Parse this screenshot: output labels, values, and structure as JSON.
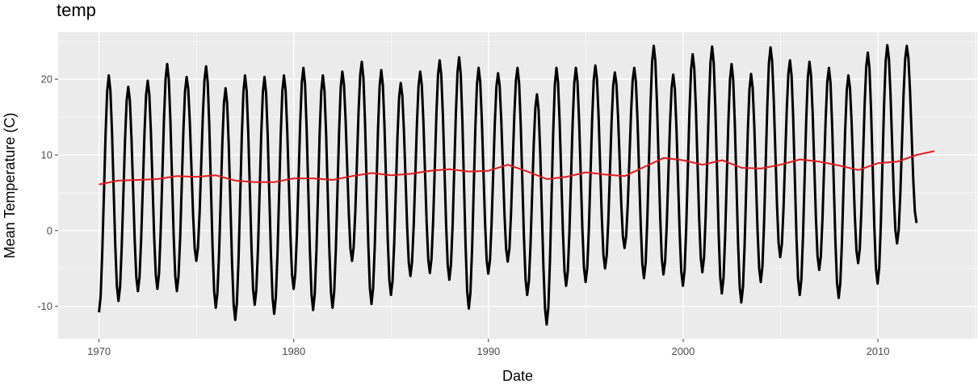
{
  "chart_data": {
    "type": "line",
    "title": "temp",
    "xlabel": "Date",
    "ylabel": "Mean Temperature (C)",
    "xlim": [
      1967.9,
      2015.1
    ],
    "ylim": [
      -14.3,
      26.2
    ],
    "x_ticks": [
      1970,
      1980,
      1990,
      2000,
      2010
    ],
    "x_tick_labels": [
      "1970",
      "1980",
      "1990",
      "2000",
      "2010"
    ],
    "y_ticks": [
      -10,
      0,
      10,
      20
    ],
    "y_tick_labels": [
      "-10",
      "0",
      "10",
      "20"
    ],
    "grid": true,
    "background": "#ebebeb",
    "series": [
      {
        "name": "",
        "color": "#000000",
        "x_start": 1970.0,
        "x_step": 0.0833,
        "summer_peaks": [
          20.5,
          19.0,
          19.8,
          22.0,
          20.3,
          21.7,
          18.8,
          20.5,
          20.3,
          20.5,
          21.5,
          20.5,
          21.0,
          22.3,
          21.2,
          19.5,
          21.0,
          22.5,
          22.9,
          21.5,
          20.8,
          21.5,
          18.0,
          21.5,
          21.5,
          21.8,
          20.9,
          21.5,
          24.4,
          20.6,
          23.3,
          24.3,
          22.0,
          20.7,
          24.2,
          22.5,
          22.3,
          21.5,
          20.5,
          23.5,
          24.5,
          24.4
        ],
        "winter_troughs": [
          -10.8,
          -9.3,
          -8.0,
          -7.7,
          -8.0,
          -4.0,
          -10.2,
          -11.8,
          -9.8,
          -11.0,
          -7.7,
          -10.5,
          -10.2,
          -4.0,
          -9.7,
          -8.5,
          -6.0,
          -5.6,
          -6.5,
          -10.3,
          -5.7,
          -4.1,
          -8.5,
          -12.4,
          -7.3,
          -6.8,
          -5.0,
          -2.3,
          -6.3,
          -5.8,
          -7.3,
          -5.5,
          -8.3,
          -9.5,
          -6.8,
          -3.5,
          -8.5,
          -5.2,
          -8.9,
          -4.3,
          -7.0,
          -1.7,
          1.0
        ]
      },
      {
        "name": "",
        "color": "#e31a1c",
        "x": [
          1970.0,
          1971,
          1972,
          1973,
          1974,
          1975,
          1976,
          1977,
          1978,
          1979,
          1980,
          1981,
          1982,
          1983,
          1984,
          1985,
          1986,
          1987,
          1988,
          1989,
          1990,
          1991,
          1992,
          1993,
          1994,
          1995,
          1996,
          1997,
          1998,
          1999,
          2000,
          2001,
          2002,
          2003,
          2004,
          2005,
          2006,
          2007,
          2008,
          2009,
          2010,
          2011,
          2012,
          2012.9
        ],
        "values": [
          6.1,
          6.6,
          6.7,
          6.8,
          7.2,
          7.1,
          7.3,
          6.6,
          6.4,
          6.4,
          6.9,
          6.9,
          6.7,
          7.2,
          7.6,
          7.3,
          7.5,
          7.9,
          8.1,
          7.8,
          7.9,
          8.7,
          7.8,
          6.8,
          7.1,
          7.7,
          7.4,
          7.2,
          8.4,
          9.6,
          9.3,
          8.7,
          9.3,
          8.3,
          8.2,
          8.7,
          9.4,
          9.1,
          8.6,
          8.0,
          8.9,
          9.1,
          10.0,
          10.5
        ]
      }
    ]
  }
}
